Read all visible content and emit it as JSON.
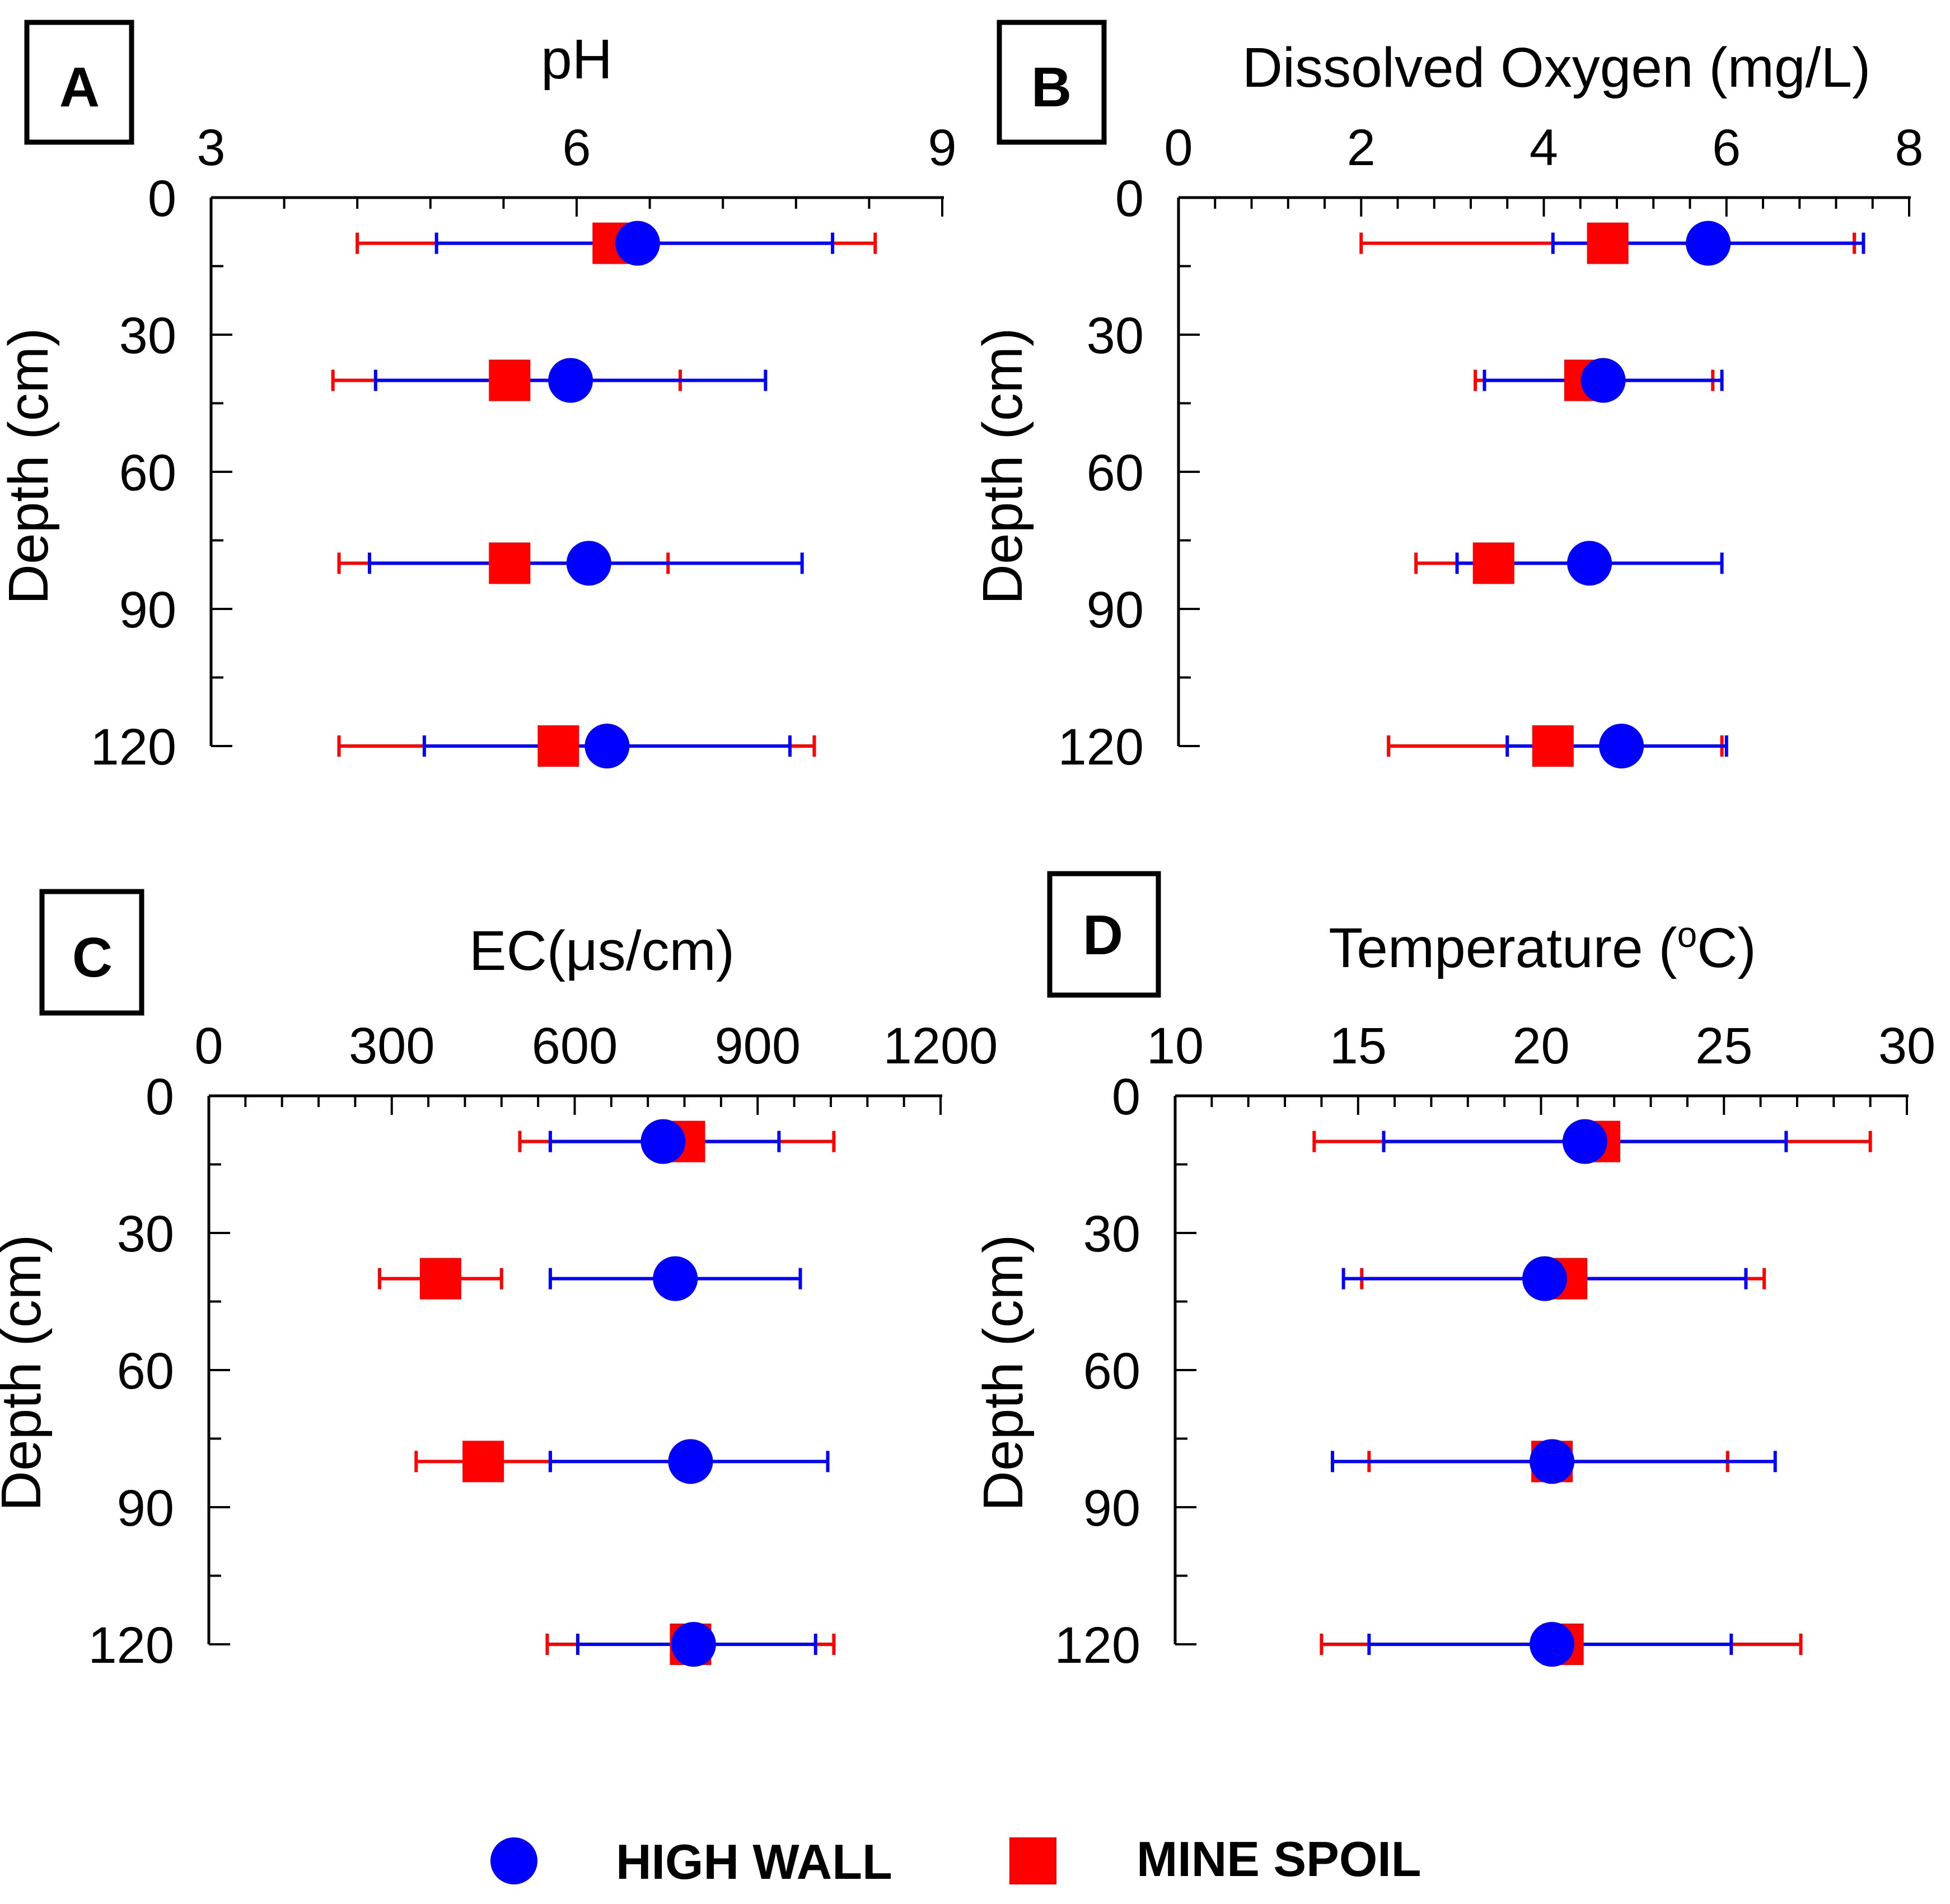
{
  "chart_data": [
    {
      "panel": "A",
      "type": "scatter",
      "xlabel": "pH",
      "ylabel": "Depth (cm)",
      "xlim": [
        3,
        9
      ],
      "ylim": [
        0,
        120
      ],
      "x_ticks": [
        "3",
        "6",
        "9"
      ],
      "y_ticks": [
        "0",
        "30",
        "60",
        "90",
        "120"
      ],
      "series": [
        {
          "name": "HIGH WALL",
          "color": "#0000ff",
          "marker": "circle",
          "points": [
            {
              "depth": 10,
              "value": 6.5,
              "low": 4.85,
              "high": 8.1
            },
            {
              "depth": 40,
              "value": 5.95,
              "low": 4.35,
              "high": 7.55
            },
            {
              "depth": 80,
              "value": 6.1,
              "low": 4.3,
              "high": 7.85
            },
            {
              "depth": 120,
              "value": 6.25,
              "low": 4.75,
              "high": 7.75
            }
          ]
        },
        {
          "name": "MINE SPOIL",
          "color": "#ff0000",
          "marker": "square",
          "points": [
            {
              "depth": 10,
              "value": 6.3,
              "low": 4.2,
              "high": 8.45
            },
            {
              "depth": 40,
              "value": 5.45,
              "low": 4.0,
              "high": 6.85
            },
            {
              "depth": 80,
              "value": 5.45,
              "low": 4.05,
              "high": 6.75
            },
            {
              "depth": 120,
              "value": 5.85,
              "low": 4.05,
              "high": 7.95
            }
          ]
        }
      ]
    },
    {
      "panel": "B",
      "type": "scatter",
      "xlabel": "Dissolved Oxygen (mg/L)",
      "ylabel": "Depth (cm)",
      "xlim": [
        0,
        8
      ],
      "ylim": [
        0,
        120
      ],
      "x_ticks": [
        "0",
        "2",
        "4",
        "6",
        "8"
      ],
      "y_ticks": [
        "0",
        "30",
        "60",
        "90",
        "120"
      ],
      "series": [
        {
          "name": "HIGH WALL",
          "color": "#0000ff",
          "marker": "circle",
          "points": [
            {
              "depth": 10,
              "value": 5.8,
              "low": 4.1,
              "high": 7.5
            },
            {
              "depth": 40,
              "value": 4.65,
              "low": 3.35,
              "high": 5.95
            },
            {
              "depth": 80,
              "value": 4.5,
              "low": 3.05,
              "high": 5.95
            },
            {
              "depth": 120,
              "value": 4.85,
              "low": 3.6,
              "high": 6.0
            }
          ]
        },
        {
          "name": "MINE SPOIL",
          "color": "#ff0000",
          "marker": "square",
          "points": [
            {
              "depth": 10,
              "value": 4.7,
              "low": 2.0,
              "high": 7.4
            },
            {
              "depth": 40,
              "value": 4.45,
              "low": 3.25,
              "high": 5.85
            },
            {
              "depth": 80,
              "value": 3.45,
              "low": 2.6,
              "high": 4.3
            },
            {
              "depth": 120,
              "value": 4.1,
              "low": 2.3,
              "high": 5.95
            }
          ]
        }
      ]
    },
    {
      "panel": "C",
      "type": "scatter",
      "xlabel": "EC(μs/cm)",
      "ylabel": "Depth (cm)",
      "xlim": [
        0,
        1200
      ],
      "ylim": [
        0,
        120
      ],
      "x_ticks": [
        "0",
        "300",
        "600",
        "900",
        "1200"
      ],
      "y_ticks": [
        "0",
        "30",
        "60",
        "90",
        "120"
      ],
      "series": [
        {
          "name": "HIGH WALL",
          "color": "#0000ff",
          "marker": "circle",
          "points": [
            {
              "depth": 10,
              "value": 745,
              "low": 560,
              "high": 935
            },
            {
              "depth": 40,
              "value": 765,
              "low": 560,
              "high": 970
            },
            {
              "depth": 80,
              "value": 790,
              "low": 560,
              "high": 1015
            },
            {
              "depth": 120,
              "value": 795,
              "low": 605,
              "high": 995
            }
          ]
        },
        {
          "name": "MINE SPOIL",
          "color": "#ff0000",
          "marker": "square",
          "points": [
            {
              "depth": 10,
              "value": 780,
              "low": 510,
              "high": 1025
            },
            {
              "depth": 40,
              "value": 380,
              "low": 280,
              "high": 480
            },
            {
              "depth": 80,
              "value": 450,
              "low": 340,
              "high": 560
            },
            {
              "depth": 120,
              "value": 790,
              "low": 555,
              "high": 1025
            }
          ]
        }
      ]
    },
    {
      "panel": "D",
      "type": "scatter",
      "xlabel": "Temperature (",
      "xlabel_sup": "o",
      "xlabel_tail": "C)",
      "ylabel": "Depth (cm)",
      "xlim": [
        10,
        30
      ],
      "ylim": [
        0,
        120
      ],
      "x_ticks": [
        "10",
        "15",
        "20",
        "25",
        "30"
      ],
      "y_ticks": [
        "0",
        "30",
        "60",
        "90",
        "120"
      ],
      "series": [
        {
          "name": "HIGH WALL",
          "color": "#0000ff",
          "marker": "circle",
          "points": [
            {
              "depth": 10,
              "value": 21.2,
              "low": 15.7,
              "high": 26.7
            },
            {
              "depth": 40,
              "value": 20.1,
              "low": 14.6,
              "high": 25.6
            },
            {
              "depth": 80,
              "value": 20.3,
              "low": 14.3,
              "high": 26.4
            },
            {
              "depth": 120,
              "value": 20.3,
              "low": 15.3,
              "high": 25.2
            }
          ]
        },
        {
          "name": "MINE SPOIL",
          "color": "#ff0000",
          "marker": "square",
          "points": [
            {
              "depth": 10,
              "value": 21.6,
              "low": 13.8,
              "high": 29.0
            },
            {
              "depth": 40,
              "value": 20.7,
              "low": 15.1,
              "high": 26.1
            },
            {
              "depth": 80,
              "value": 20.3,
              "low": 15.3,
              "high": 25.1
            },
            {
              "depth": 120,
              "value": 20.6,
              "low": 14.0,
              "high": 27.1
            }
          ]
        }
      ]
    }
  ],
  "legend": [
    {
      "label": "HIGH WALL",
      "color": "#0000ff",
      "marker": "circle"
    },
    {
      "label": "MINE SPOIL",
      "color": "#ff0000",
      "marker": "square"
    }
  ]
}
